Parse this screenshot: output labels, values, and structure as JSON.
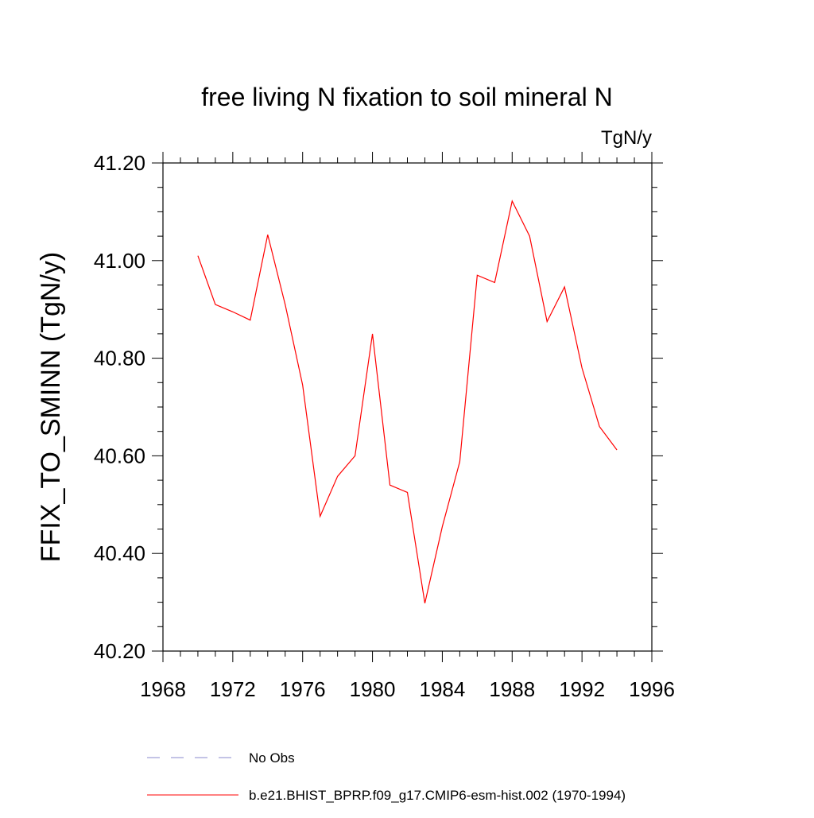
{
  "chart_data": {
    "type": "line",
    "title": "free living N fixation to soil mineral N",
    "units": "TgN/y",
    "xlabel": "",
    "ylabel": "FFIX_TO_SMINN  (TgN/y)",
    "xlim": [
      1968,
      1996
    ],
    "ylim": [
      40.2,
      41.2
    ],
    "x_ticks": [
      "1968",
      "1972",
      "1976",
      "1980",
      "1984",
      "1988",
      "1992",
      "1996"
    ],
    "y_ticks": [
      "40.20",
      "40.40",
      "40.60",
      "40.80",
      "41.00",
      "41.20"
    ],
    "series": [
      {
        "name": "b.e21.BHIST_BPRP.f09_g17.CMIP6-esm-hist.002 (1970-1994)",
        "color": "#ff0000",
        "style": "solid",
        "x": [
          1970,
          1971,
          1972,
          1973,
          1974,
          1975,
          1976,
          1977,
          1978,
          1979,
          1980,
          1981,
          1982,
          1983,
          1984,
          1985,
          1986,
          1987,
          1988,
          1989,
          1990,
          1991,
          1992,
          1993,
          1994
        ],
        "values": [
          41.01,
          40.91,
          40.895,
          40.878,
          41.053,
          40.91,
          40.745,
          40.476,
          40.558,
          40.6,
          40.85,
          40.54,
          40.525,
          40.298,
          40.455,
          40.588,
          40.97,
          40.955,
          41.122,
          41.05,
          40.875,
          40.946,
          40.78,
          40.66,
          40.612
        ]
      }
    ],
    "legend": {
      "placement": "bottom-left",
      "entries": [
        {
          "label": "No Obs",
          "color": "#8888cc",
          "style": "dashed"
        },
        {
          "label": "b.e21.BHIST_BPRP.f09_g17.CMIP6-esm-hist.002 (1970-1994)",
          "color": "#ff0000",
          "style": "solid"
        }
      ]
    }
  }
}
